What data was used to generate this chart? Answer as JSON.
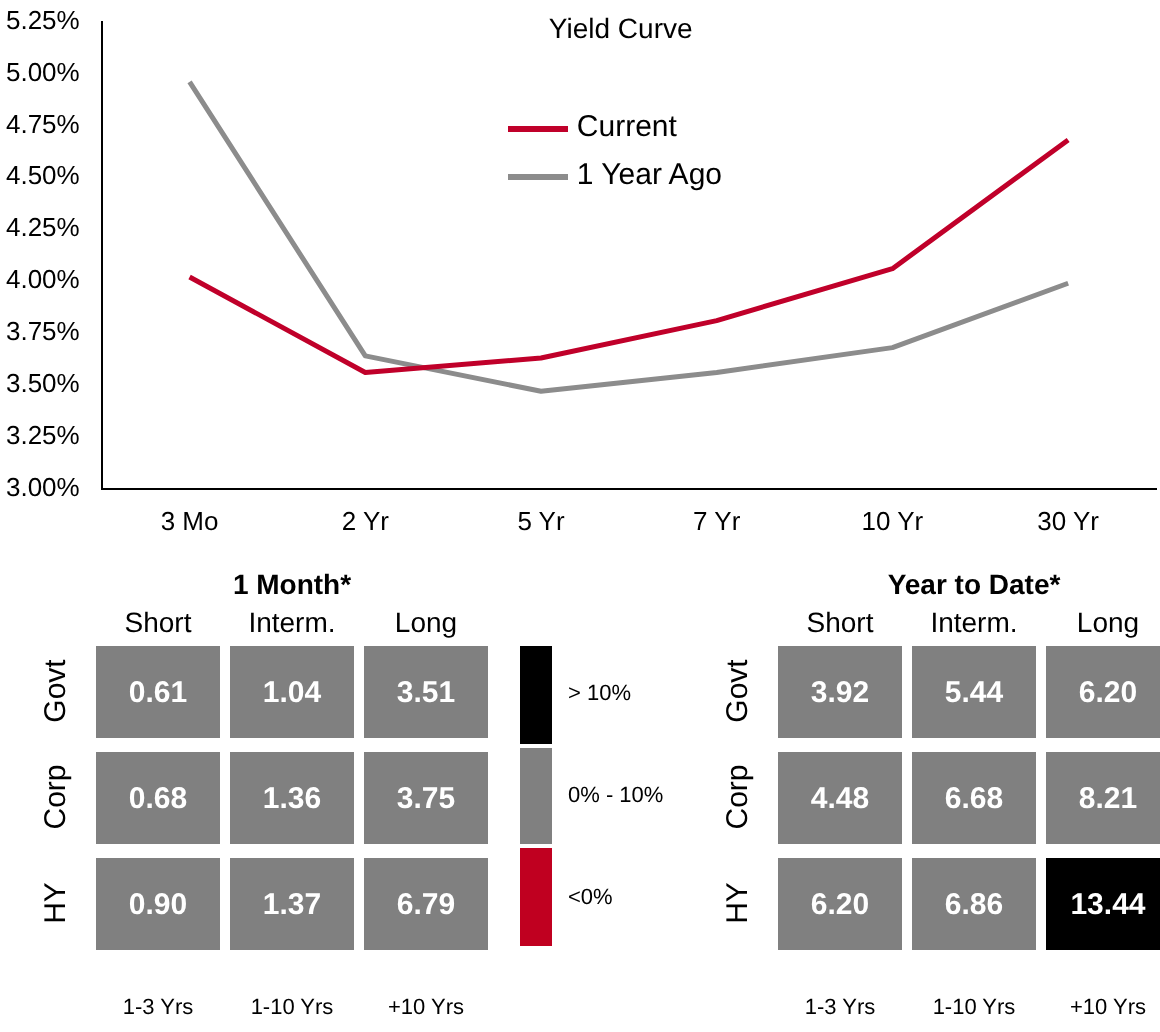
{
  "chart_data": [
    {
      "type": "line",
      "title": "Yield Curve",
      "categories": [
        "3 Mo",
        "2 Yr",
        "5 Yr",
        "7 Yr",
        "10 Yr",
        "30 Yr"
      ],
      "series": [
        {
          "name": "Current",
          "color": "#c0002a",
          "values": [
            4.02,
            3.56,
            3.63,
            3.81,
            4.06,
            4.68
          ]
        },
        {
          "name": "1 Year Ago",
          "color": "#8c8c8c",
          "values": [
            4.96,
            3.64,
            3.47,
            3.56,
            3.68,
            3.99
          ]
        }
      ],
      "ylim": [
        3.0,
        5.25
      ],
      "yticks": [
        {
          "value": 3.0,
          "label": "3.00%"
        },
        {
          "value": 3.25,
          "label": "3.25%"
        },
        {
          "value": 3.5,
          "label": "3.50%"
        },
        {
          "value": 3.75,
          "label": "3.75%"
        },
        {
          "value": 4.0,
          "label": "4.00%"
        },
        {
          "value": 4.25,
          "label": "4.25%"
        },
        {
          "value": 4.5,
          "label": "4.50%"
        },
        {
          "value": 4.75,
          "label": "4.75%"
        },
        {
          "value": 5.0,
          "label": "5.00%"
        },
        {
          "value": 5.25,
          "label": "5.25%"
        }
      ],
      "grid": false,
      "legend": "top",
      "marker": "none",
      "line_style": "solid"
    },
    {
      "type": "heatmap",
      "title": "1 Month*",
      "categories": [
        "Short",
        "Interm.",
        "Long"
      ],
      "y_categories": [
        "Govt",
        "Corp",
        "HY"
      ],
      "cells": [
        [
          0.61,
          1.04,
          3.51
        ],
        [
          0.68,
          1.36,
          3.75
        ],
        [
          0.9,
          1.37,
          6.79
        ]
      ],
      "cell_labels": [
        [
          "0.61",
          "1.04",
          "3.51"
        ],
        [
          "0.68",
          "1.36",
          "3.75"
        ],
        [
          "0.90",
          "1.37",
          "6.79"
        ]
      ],
      "colors": [
        [
          "#808080",
          "#808080",
          "#808080"
        ],
        [
          "#808080",
          "#808080",
          "#808080"
        ],
        [
          "#808080",
          "#808080",
          "#808080"
        ]
      ],
      "annotations": [
        "1-3 Yrs",
        "1-10 Yrs",
        "+10 Yrs"
      ]
    },
    {
      "type": "other",
      "categories": [
        "> 10%",
        "0% - 10%",
        "<0%"
      ],
      "colors": [
        "#000000",
        "#808080",
        "#c00020"
      ]
    },
    {
      "type": "heatmap",
      "title": "Year to Date*",
      "categories": [
        "Short",
        "Interm.",
        "Long"
      ],
      "y_categories": [
        "Govt",
        "Corp",
        "HY"
      ],
      "cells": [
        [
          3.92,
          5.44,
          6.2
        ],
        [
          4.48,
          6.68,
          8.21
        ],
        [
          6.2,
          6.86,
          13.44
        ]
      ],
      "cell_labels": [
        [
          "3.92",
          "5.44",
          "6.20"
        ],
        [
          "4.48",
          "6.68",
          "8.21"
        ],
        [
          "6.20",
          "6.86",
          "13.44"
        ]
      ],
      "colors": [
        [
          "#808080",
          "#808080",
          "#808080"
        ],
        [
          "#808080",
          "#808080",
          "#808080"
        ],
        [
          "#808080",
          "#808080",
          "#000000"
        ]
      ],
      "annotations": [
        "1-3 Yrs",
        "1-10 Yrs",
        "+10 Yrs"
      ]
    }
  ]
}
